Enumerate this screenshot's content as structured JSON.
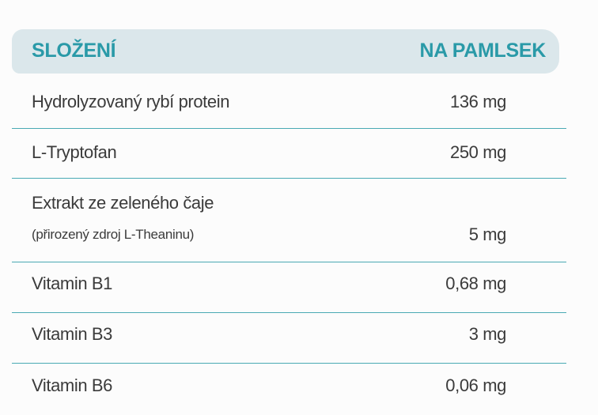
{
  "table": {
    "header": {
      "left": "SLOŽENÍ",
      "right": "NA PAMLSEK"
    },
    "rows": [
      {
        "name": "Hydrolyzovaný rybí protein",
        "amount": "136 mg"
      },
      {
        "name": "L-Tryptofan",
        "amount": "250 mg"
      },
      {
        "name": "Extrakt ze zeleného čaje",
        "note": "(přirozený zdroj L-Theaninu)",
        "amount": "5 mg"
      },
      {
        "name": "Vitamin B1",
        "amount": "0,68 mg"
      },
      {
        "name": "Vitamin B3",
        "amount": "3 mg"
      },
      {
        "name": "Vitamin B6",
        "amount": "0,06 mg"
      }
    ]
  }
}
